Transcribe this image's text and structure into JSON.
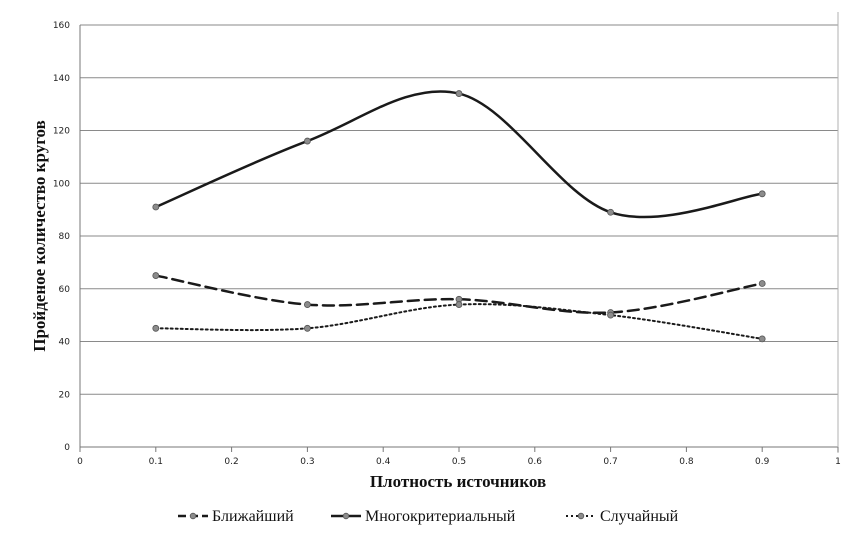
{
  "chart_data": {
    "type": "line",
    "x": [
      0.1,
      0.3,
      0.5,
      0.7,
      0.9
    ],
    "series": [
      {
        "name": "Ближайший",
        "values": [
          65,
          54,
          56,
          51,
          62
        ],
        "style": "dashed",
        "color": "#1a1a1a"
      },
      {
        "name": "Многокритериальный",
        "values": [
          91,
          116,
          134,
          89,
          96
        ],
        "style": "solid",
        "color": "#1a1a1a"
      },
      {
        "name": "Случайный",
        "values": [
          45,
          45,
          54,
          50,
          41
        ],
        "style": "dotted",
        "color": "#1a1a1a"
      }
    ],
    "xlabel": "Плотность источников",
    "ylabel": "Пройденое количество кругов",
    "xlim": [
      0,
      1
    ],
    "ylim": [
      0,
      160
    ],
    "xticks": [
      "0",
      "0.1",
      "0.2",
      "0.3",
      "0.4",
      "0.5",
      "0.6",
      "0.7",
      "0.8",
      "0.9",
      "1"
    ],
    "yticks": [
      "0",
      "20",
      "40",
      "60",
      "80",
      "100",
      "120",
      "140",
      "160"
    ],
    "grid": true,
    "legend_position": "bottom",
    "marker_color": "#8c8c8c"
  }
}
